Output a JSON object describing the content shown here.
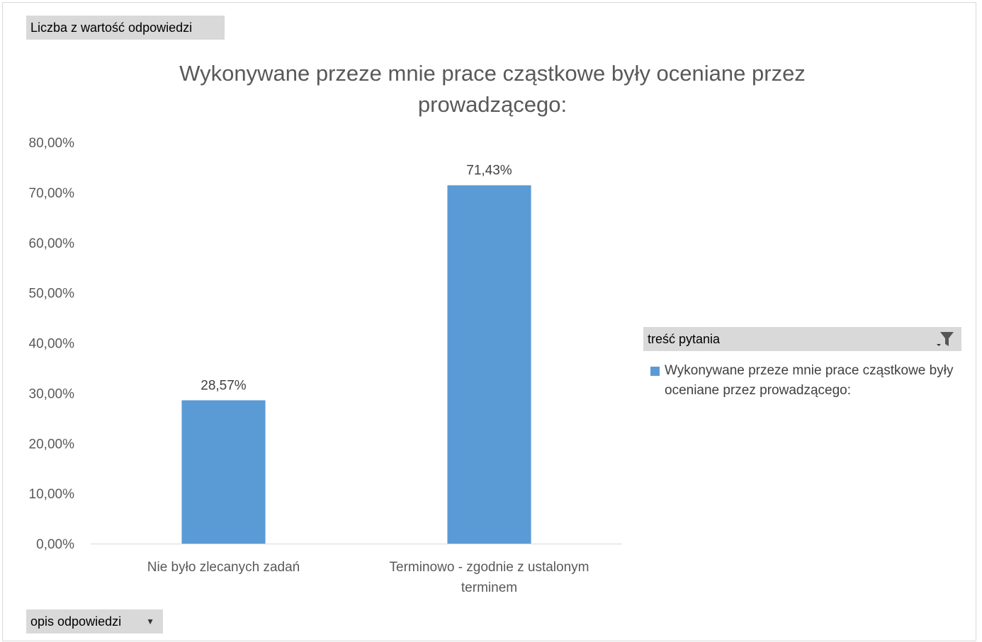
{
  "pivot": {
    "values_field": "Liczba z wartość odpowiedzi",
    "axis_field": "opis odpowiedzi",
    "legend_field": "treść pytania"
  },
  "chart_data": {
    "type": "bar",
    "title": "Wykonywane przeze mnie prace cząstkowe były oceniane przez prowadzącego:",
    "categories": [
      "Nie było zlecanych zadań",
      "Terminowo - zgodnie z ustalonym terminem"
    ],
    "series": [
      {
        "name": "Wykonywane przeze mnie prace cząstkowe były oceniane przez prowadzącego:",
        "values": [
          28.57,
          71.43
        ],
        "color": "#5b9bd5"
      }
    ],
    "data_labels": [
      "28,57%",
      "71,43%"
    ],
    "yticks": [
      "0,00%",
      "10,00%",
      "20,00%",
      "30,00%",
      "40,00%",
      "50,00%",
      "60,00%",
      "70,00%",
      "80,00%"
    ],
    "ylim": [
      0,
      80
    ],
    "xlabel": "",
    "ylabel": "",
    "grid": false,
    "legend": "right"
  },
  "legend": {
    "entries": [
      "Wykonywane przeze mnie prace cząstkowe były oceniane przez prowadzącego:"
    ]
  },
  "icons": {
    "filter": "filter-icon",
    "dropdown": "chevron-down-icon"
  }
}
